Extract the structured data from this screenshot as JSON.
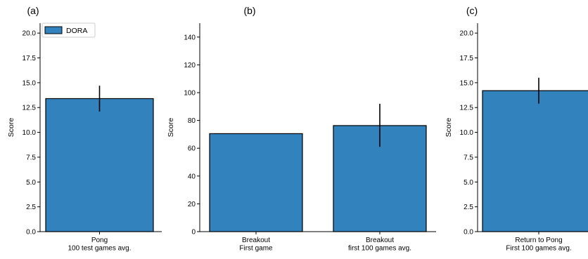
{
  "figure": {
    "panel_labels": [
      "(a)",
      "(b)",
      "(c)"
    ],
    "legend": {
      "label": "DORA",
      "location": "upper-left of panel (a)"
    },
    "bar_color": "#3282bd",
    "bar_edge_color": "#000000"
  },
  "chart_data": [
    {
      "type": "bar",
      "panel": "(a)",
      "ylabel": "Score",
      "ylim": [
        0,
        21
      ],
      "yticks": [
        "0.0",
        "2.5",
        "5.0",
        "7.5",
        "10.0",
        "12.5",
        "15.0",
        "17.5",
        "20.0"
      ],
      "categories": [
        "Pong\n100 test games avg."
      ],
      "series": [
        {
          "name": "DORA",
          "values": [
            13.4
          ],
          "error": [
            [
              12.1,
              14.7
            ]
          ]
        }
      ],
      "grid": false
    },
    {
      "type": "bar",
      "panel": "(b)",
      "ylabel": "Score",
      "ylim": [
        0,
        150
      ],
      "yticks": [
        "0",
        "20",
        "40",
        "60",
        "80",
        "100",
        "120",
        "140"
      ],
      "categories": [
        "Breakout\nFirst game",
        "Breakout\nfirst 100 games avg."
      ],
      "series": [
        {
          "name": "DORA",
          "values": [
            70.5,
            76.3
          ],
          "error": [
            null,
            [
              61,
              92
            ]
          ]
        }
      ],
      "grid": false
    },
    {
      "type": "bar",
      "panel": "(c)",
      "ylabel": "Score",
      "ylim": [
        0,
        21
      ],
      "yticks": [
        "0.0",
        "2.5",
        "5.0",
        "7.5",
        "10.0",
        "12.5",
        "15.0",
        "17.5",
        "20.0"
      ],
      "categories": [
        "Return to Pong\nFirst 100 games avg."
      ],
      "series": [
        {
          "name": "DORA",
          "values": [
            14.2
          ],
          "error": [
            [
              12.9,
              15.5
            ]
          ]
        }
      ],
      "grid": false
    }
  ]
}
